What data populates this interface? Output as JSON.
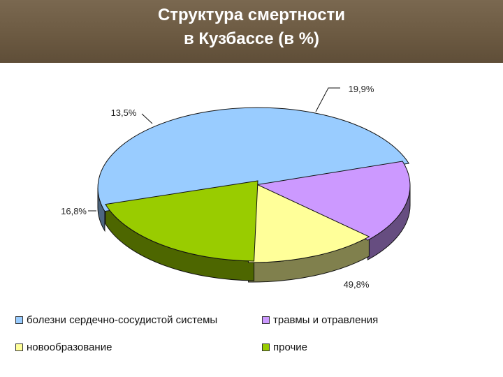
{
  "header": {
    "title_line1": "Структура смертности",
    "title_line2": "в Кузбассе (в %)"
  },
  "chart_data": {
    "type": "pie",
    "title": "Структура смертности в Кузбассе (в %)",
    "unit": "%",
    "slices": [
      {
        "name": "болезни сердечно-сосудистой системы",
        "value": 49.8,
        "label": "49,8%",
        "color": "#99ccff",
        "side_color": "#4d6680"
      },
      {
        "name": "травмы и отравления",
        "value": 16.8,
        "label": "16,8%",
        "color": "#cc99ff",
        "side_color": "#664d80"
      },
      {
        "name": "новообразование",
        "value": 13.5,
        "label": "13,5%",
        "color": "#ffff99",
        "side_color": "#80804d"
      },
      {
        "name": "прочие",
        "value": 19.9,
        "label": "19,9%",
        "color": "#99cc00",
        "side_color": "#4d6600"
      }
    ],
    "legend_position": "bottom"
  }
}
